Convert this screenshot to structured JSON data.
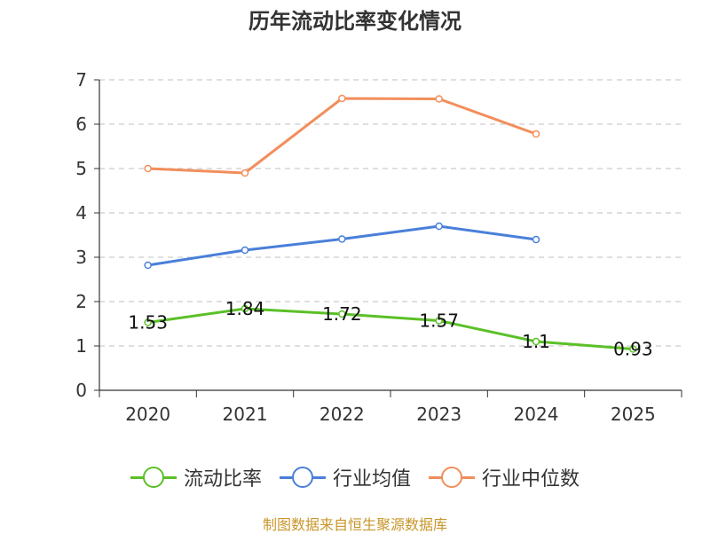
{
  "chart_data": {
    "type": "line",
    "title": "历年流动比率变化情况",
    "categories": [
      "2020",
      "2021",
      "2022",
      "2023",
      "2024",
      "2025"
    ],
    "ylim": [
      0,
      7
    ],
    "yticks": [
      "0",
      "1",
      "2",
      "3",
      "4",
      "5",
      "6",
      "7"
    ],
    "grid": true,
    "legend_position": "bottom",
    "series": [
      {
        "name": "流动比率",
        "color": "#5bc027",
        "values": [
          1.53,
          1.84,
          1.72,
          1.57,
          1.1,
          0.93
        ],
        "labels": [
          "1.53",
          "1.84",
          "1.72",
          "1.57",
          "1.1",
          "0.93"
        ]
      },
      {
        "name": "行业均值",
        "color": "#4a7fd9",
        "values": [
          2.82,
          3.16,
          3.41,
          3.7,
          3.4,
          null
        ]
      },
      {
        "name": "行业中位数",
        "color": "#f28e5b",
        "values": [
          5.0,
          4.9,
          6.58,
          6.57,
          5.78,
          null
        ]
      }
    ]
  },
  "source": "制图数据来自恒生聚源数据库"
}
